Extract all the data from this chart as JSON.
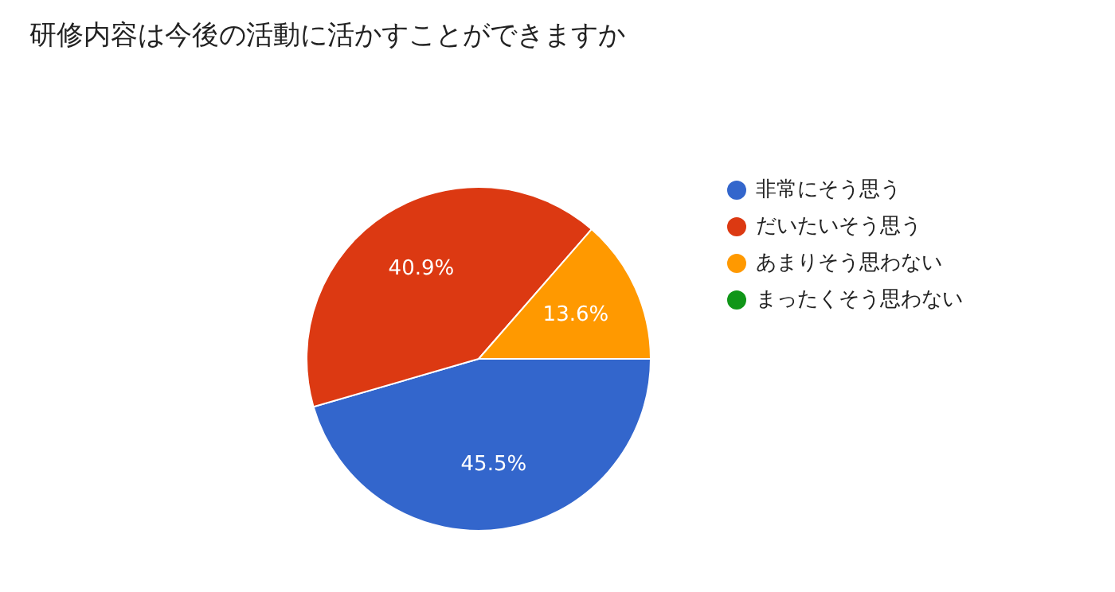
{
  "chart_data": {
    "type": "pie",
    "title": "研修内容は今後の活動に活かすことができますか",
    "categories": [
      "非常にそう思う",
      "だいたいそう思う",
      "あまりそう思わない",
      "まったくそう思わない"
    ],
    "values": [
      45.5,
      40.9,
      13.6,
      0
    ],
    "colors": [
      "#3366cc",
      "#dc3912",
      "#ff9900",
      "#109618"
    ],
    "value_labels": [
      "45.5%",
      "40.9%",
      "13.6%",
      null
    ],
    "legend": "right"
  }
}
